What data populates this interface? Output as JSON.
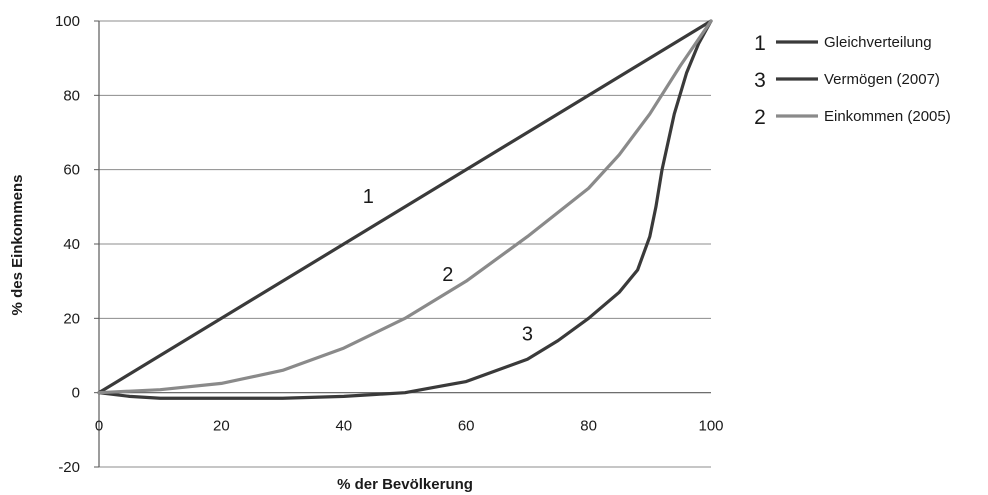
{
  "chart_data": {
    "type": "line",
    "xlabel": "% der Bevölkerung",
    "ylabel": "% des Einkommens",
    "xlim": [
      0,
      100
    ],
    "ylim": [
      -20,
      100
    ],
    "x_ticks": [
      0,
      20,
      40,
      60,
      80,
      100
    ],
    "y_ticks": [
      -20,
      0,
      20,
      40,
      60,
      80,
      100
    ],
    "grid": "horizontal",
    "legend_position": "right",
    "series": [
      {
        "id": "1",
        "name": "Gleichverteilung",
        "color": "#3a3a3a",
        "x": [
          0,
          100
        ],
        "y": [
          0,
          100
        ]
      },
      {
        "id": "3",
        "name": "Vermögen (2007)",
        "color": "#3a3a3a",
        "x": [
          0,
          5,
          10,
          20,
          30,
          40,
          45,
          50,
          55,
          60,
          65,
          70,
          75,
          80,
          85,
          88,
          90,
          91,
          92,
          94,
          96,
          98,
          100
        ],
        "y": [
          0,
          -1,
          -1.5,
          -1.5,
          -1.5,
          -1,
          -0.5,
          0,
          1.5,
          3,
          6,
          9,
          14,
          20,
          27,
          33,
          42,
          50,
          60,
          75,
          86,
          94,
          100
        ]
      },
      {
        "id": "2",
        "name": "Einkommen (2005)",
        "color": "#8a8a8a",
        "x": [
          0,
          10,
          20,
          30,
          40,
          50,
          60,
          70,
          80,
          85,
          90,
          95,
          100
        ],
        "y": [
          0,
          0.8,
          2.5,
          6,
          12,
          20,
          30,
          42,
          55,
          64,
          75,
          88,
          100
        ]
      }
    ],
    "curve_labels": [
      {
        "text": "1",
        "x": 44,
        "y": 51
      },
      {
        "text": "2",
        "x": 57,
        "y": 30
      },
      {
        "text": "3",
        "x": 70,
        "y": 14
      }
    ]
  }
}
